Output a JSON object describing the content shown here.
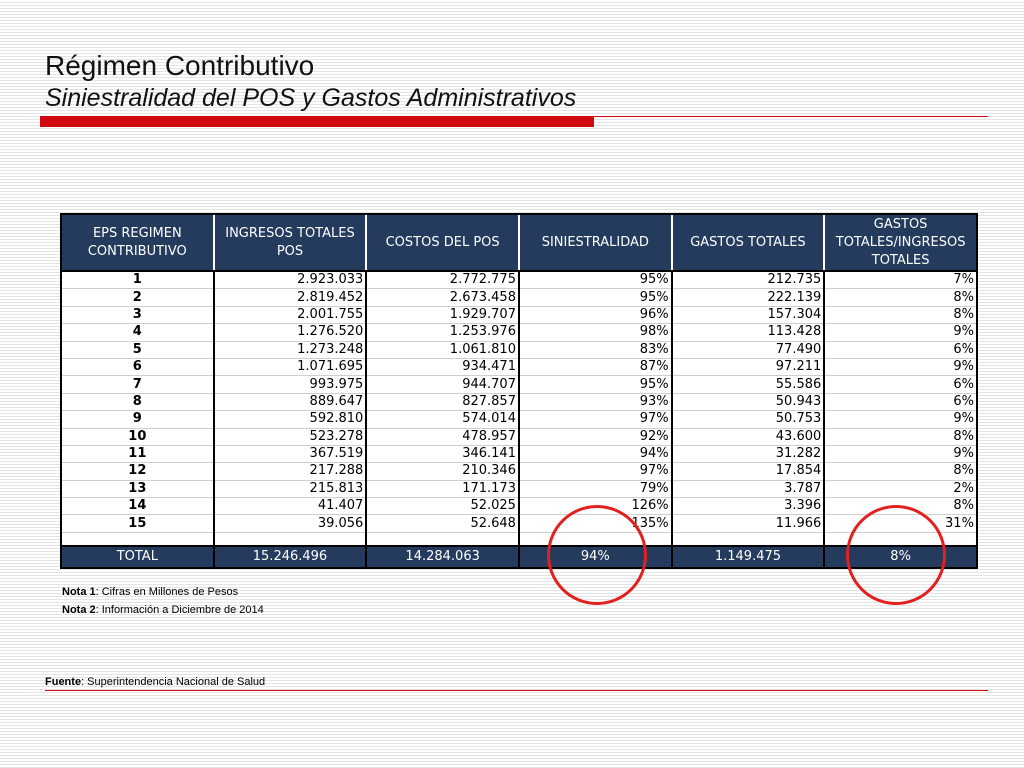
{
  "slide": {
    "title": "Régimen Contributivo",
    "subtitle": "Siniestralidad del POS y Gastos Administrativos",
    "accent_color": "#d10a10"
  },
  "table": {
    "header_color": "#243b5e",
    "headers": [
      "EPS REGIMEN CONTRIBUTIVO",
      "INGRESOS TOTALES POS",
      "COSTOS DEL POS",
      "SINIESTRALIDAD",
      "GASTOS TOTALES",
      "GASTOS TOTALES/INGRESOS TOTALES"
    ],
    "rows": [
      [
        "1",
        "2.923.033",
        "2.772.775",
        "95%",
        "212.735",
        "7%"
      ],
      [
        "2",
        "2.819.452",
        "2.673.458",
        "95%",
        "222.139",
        "8%"
      ],
      [
        "3",
        "2.001.755",
        "1.929.707",
        "96%",
        "157.304",
        "8%"
      ],
      [
        "4",
        "1.276.520",
        "1.253.976",
        "98%",
        "113.428",
        "9%"
      ],
      [
        "5",
        "1.273.248",
        "1.061.810",
        "83%",
        "77.490",
        "6%"
      ],
      [
        "6",
        "1.071.695",
        "934.471",
        "87%",
        "97.211",
        "9%"
      ],
      [
        "7",
        "993.975",
        "944.707",
        "95%",
        "55.586",
        "6%"
      ],
      [
        "8",
        "889.647",
        "827.857",
        "93%",
        "50.943",
        "6%"
      ],
      [
        "9",
        "592.810",
        "574.014",
        "97%",
        "50.753",
        "9%"
      ],
      [
        "10",
        "523.278",
        "478.957",
        "92%",
        "43.600",
        "8%"
      ],
      [
        "11",
        "367.519",
        "346.141",
        "94%",
        "31.282",
        "9%"
      ],
      [
        "12",
        "217.288",
        "210.346",
        "97%",
        "17.854",
        "8%"
      ],
      [
        "13",
        "215.813",
        "171.173",
        "79%",
        "3.787",
        "2%"
      ],
      [
        "14",
        "41.407",
        "52.025",
        "126%",
        "3.396",
        "8%"
      ],
      [
        "15",
        "39.056",
        "52.648",
        "135%",
        "11.966",
        "31%"
      ]
    ],
    "total": [
      "TOTAL",
      "15.246.496",
      "14.284.063",
      "94%",
      "1.149.475",
      "8%"
    ]
  },
  "notes": [
    {
      "label": "Nota 1",
      "text": ": Cifras en Millones de Pesos"
    },
    {
      "label": "Nota 2",
      "text": ": Información a Diciembre de 2014"
    }
  ],
  "source": {
    "label": "Fuente",
    "text": ": Superintendencia Nacional de Salud"
  },
  "highlight_color": "#e32020"
}
